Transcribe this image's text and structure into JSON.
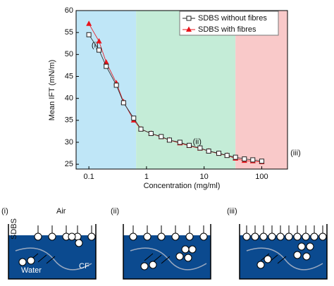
{
  "chart_data": {
    "type": "line",
    "x_label": "Concentration (mg/ml)",
    "y_label": "Mean IFT (mN/m)",
    "xscale": "log",
    "xlim": [
      0.06,
      280
    ],
    "ylim": [
      23.9,
      60
    ],
    "xticks": [
      0.1,
      1,
      10,
      100
    ],
    "yticks": [
      25,
      30,
      35,
      40,
      45,
      50,
      55,
      60
    ],
    "legend": "upper right",
    "grid": false,
    "regions": [
      {
        "label": "(i)",
        "from": 0.06,
        "to": 0.66,
        "color": "#bfe6f7"
      },
      {
        "label": "(ii)",
        "from": 0.66,
        "to": 35,
        "color": "#c4ecd7"
      },
      {
        "label": "(iii)",
        "from": 35,
        "to": 280,
        "color": "#f9c9c9"
      }
    ],
    "series": [
      {
        "name": "SDBS with fibres",
        "color": "#e8141b",
        "marker": "triangle",
        "x": [
          0.1,
          0.15,
          0.2,
          0.3,
          0.4,
          0.6,
          0.8,
          1.2,
          1.8,
          2.5,
          3.8,
          5.5,
          8.5,
          12,
          18,
          25,
          35,
          50,
          70,
          100
        ],
        "values": [
          57,
          53,
          48.2,
          43.5,
          39.2,
          35,
          33,
          32,
          31.2,
          30.5,
          29.8,
          29.2,
          28.6,
          28,
          27.4,
          27,
          26.3,
          25.8,
          25.7,
          25.5
        ]
      },
      {
        "name": "SDBS without fibres",
        "color": "#222222",
        "marker": "square",
        "x": [
          0.1,
          0.15,
          0.2,
          0.3,
          0.4,
          0.6,
          0.8,
          1.2,
          1.8,
          2.5,
          3.8,
          5.5,
          8.5,
          12,
          18,
          25,
          35,
          50,
          70,
          100
        ],
        "values": [
          54.5,
          51,
          47.3,
          43,
          39,
          35.5,
          33,
          32,
          31.3,
          30.5,
          30,
          29.3,
          28.7,
          28,
          27.5,
          27,
          26.6,
          26.2,
          26,
          25.7
        ]
      }
    ]
  },
  "diagrams": [
    {
      "label": "(i)",
      "air": "Air",
      "surfactant": "SDBS",
      "water": "Water",
      "fibre": "CF"
    },
    {
      "label": "(ii)"
    },
    {
      "label": "(iii)"
    }
  ]
}
